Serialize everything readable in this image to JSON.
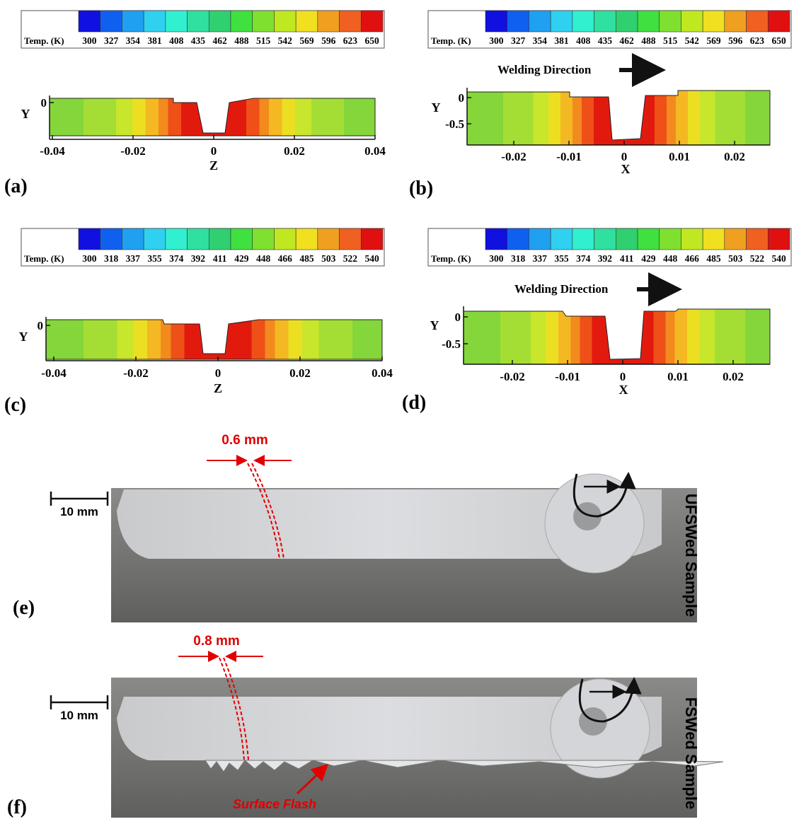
{
  "panels": [
    {
      "label": "(a)",
      "legend_title": "Temp. (K)",
      "legend_ticks": [
        300,
        327,
        354,
        381,
        408,
        435,
        462,
        488,
        515,
        542,
        569,
        596,
        623,
        650
      ],
      "y_label": "Y",
      "x_label": "Z",
      "yticks": [
        0
      ],
      "xticks": [
        -0.04,
        -0.02,
        0,
        0.02,
        0.04
      ]
    },
    {
      "label": "(b)",
      "legend_title": "Temp. (K)",
      "legend_ticks": [
        300,
        327,
        354,
        381,
        408,
        435,
        462,
        488,
        515,
        542,
        569,
        596,
        623,
        650
      ],
      "annotation": "Welding Direction",
      "y_label": "Y",
      "x_label": "X",
      "yticks": [
        0,
        -0.5
      ],
      "xticks": [
        -0.02,
        -0.01,
        0,
        0.01,
        0.02
      ]
    },
    {
      "label": "(c)",
      "legend_title": "Temp. (K)",
      "legend_ticks": [
        300,
        318,
        337,
        355,
        374,
        392,
        411,
        429,
        448,
        466,
        485,
        503,
        522,
        540
      ],
      "y_label": "Y",
      "x_label": "Z",
      "yticks": [
        0
      ],
      "xticks": [
        -0.04,
        -0.02,
        0,
        0.02,
        0.04
      ]
    },
    {
      "label": "(d)",
      "legend_title": "Temp. (K)",
      "legend_ticks": [
        300,
        318,
        337,
        355,
        374,
        392,
        411,
        429,
        448,
        466,
        485,
        503,
        522,
        540
      ],
      "annotation": "Welding Direction",
      "y_label": "Y",
      "x_label": "X",
      "yticks": [
        0,
        -0.5
      ],
      "xticks": [
        -0.02,
        -0.01,
        0,
        0.01,
        0.02
      ]
    }
  ],
  "photos": [
    {
      "label": "(e)",
      "scale_bar": "10 mm",
      "gap": "0.6 mm",
      "side_label": "UFSWed Sample"
    },
    {
      "label": "(f)",
      "scale_bar": "10 mm",
      "gap": "0.8 mm",
      "side_label": "FSWed Sample",
      "annotation": "Surface Flash"
    }
  ]
}
